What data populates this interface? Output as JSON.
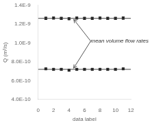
{
  "chart_data": {
    "type": "scatter",
    "xlabel": "data label",
    "ylabel": "Q (m³/s)",
    "xlim": [
      0,
      12
    ],
    "ylim": [
      4e-10,
      1.4e-09
    ],
    "xticks": [
      0,
      2,
      4,
      6,
      8,
      10,
      12
    ],
    "yticks": [
      {
        "value": 4e-10,
        "label": "4.0E-10"
      },
      {
        "value": 6e-10,
        "label": "6.0E-10"
      },
      {
        "value": 8e-10,
        "label": "8.0E-10"
      },
      {
        "value": 1e-09,
        "label": "1.0E-9"
      },
      {
        "value": 1.2e-09,
        "label": "1.2E-9"
      },
      {
        "value": 1.4e-09,
        "label": "1.4E-9"
      }
    ],
    "grid": false,
    "series": [
      {
        "type": "line",
        "color": "#444444",
        "x": [
          0,
          12
        ],
        "values": [
          1.262e-09,
          1.262e-09
        ]
      },
      {
        "type": "line",
        "color": "#444444",
        "x": [
          0,
          12
        ],
        "values": [
          7.2e-10,
          7.2e-10
        ]
      },
      {
        "type": "scatter",
        "marker": "square",
        "color": "#222222",
        "x": [
          1,
          2,
          3,
          4,
          5,
          6,
          7,
          8,
          9,
          10,
          11
        ],
        "values": [
          1.262e-09,
          1.265e-09,
          1.262e-09,
          1.258e-09,
          1.265e-09,
          1.262e-09,
          1.262e-09,
          1.265e-09,
          1.262e-09,
          1.262e-09,
          1.265e-09
        ],
        "yerr": [
          1.3e-11,
          1.1e-11,
          1.1e-11,
          1.1e-11,
          1.1e-11,
          1.1e-11,
          1.1e-11,
          1.1e-11,
          1.1e-11,
          1.1e-11,
          1.3e-11
        ]
      },
      {
        "type": "scatter",
        "marker": "square",
        "color": "#222222",
        "x": [
          1,
          2,
          3,
          4,
          5,
          6,
          7,
          8,
          9,
          10,
          11
        ],
        "values": [
          7.25e-10,
          7.2e-10,
          7.2e-10,
          7.1e-10,
          7.2e-10,
          7.2e-10,
          7.2e-10,
          7.2e-10,
          7.2e-10,
          7.2e-10,
          7.25e-10
        ],
        "yerr": [
          8e-12,
          8e-12,
          8e-12,
          8e-12,
          8e-12,
          8e-12,
          8e-12,
          8e-12,
          8e-12,
          8e-12,
          8e-12
        ]
      }
    ],
    "annotations": [
      {
        "text": "mean volume flow rates",
        "x": 6.8,
        "y": 1.02e-09,
        "color": "#555555",
        "arrows": [
          {
            "x": 4.5,
            "y": 1.262e-09
          },
          {
            "x": 4.5,
            "y": 7.2e-10
          }
        ]
      }
    ]
  }
}
